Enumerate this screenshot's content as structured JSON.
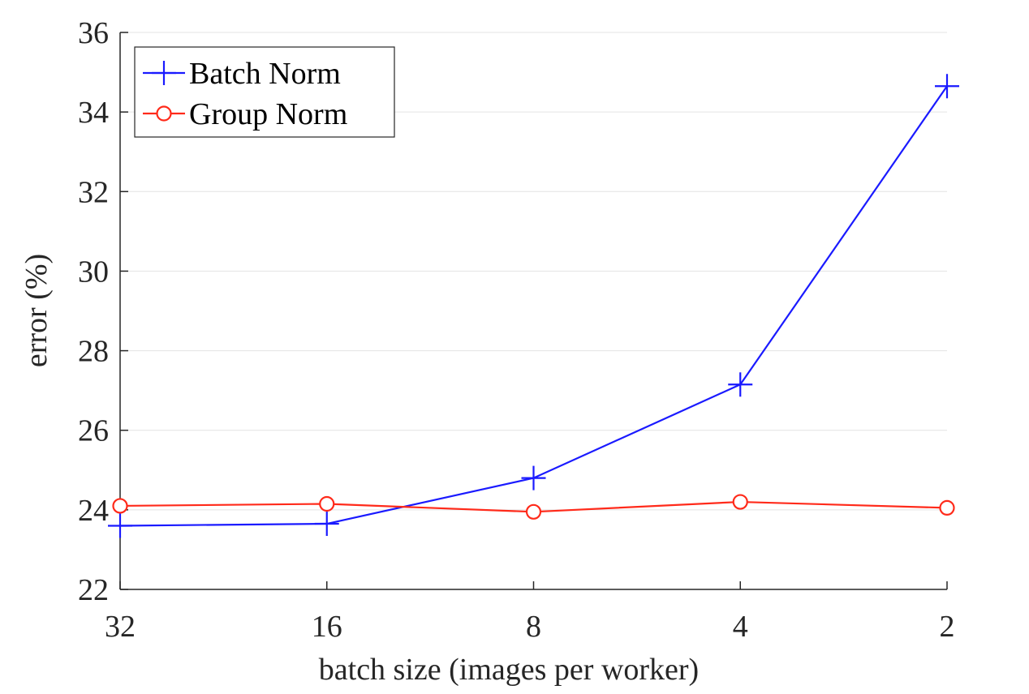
{
  "chart_data": {
    "type": "line",
    "categories": [
      "32",
      "16",
      "8",
      "4",
      "2"
    ],
    "series": [
      {
        "name": "Batch Norm",
        "values": [
          23.6,
          23.65,
          24.8,
          27.15,
          34.65
        ],
        "color": "#1a1aff",
        "marker": "plus"
      },
      {
        "name": "Group Norm",
        "values": [
          24.1,
          24.15,
          23.95,
          24.2,
          24.05
        ],
        "color": "#ff2a1a",
        "marker": "circle"
      }
    ],
    "xlabel": "batch size (images per worker)",
    "ylabel": "error (%)",
    "ylim": [
      22,
      36
    ],
    "yticks": [
      "22",
      "24",
      "26",
      "28",
      "30",
      "32",
      "34",
      "36"
    ],
    "grid": "horizontal",
    "legend_position": "top-left"
  }
}
